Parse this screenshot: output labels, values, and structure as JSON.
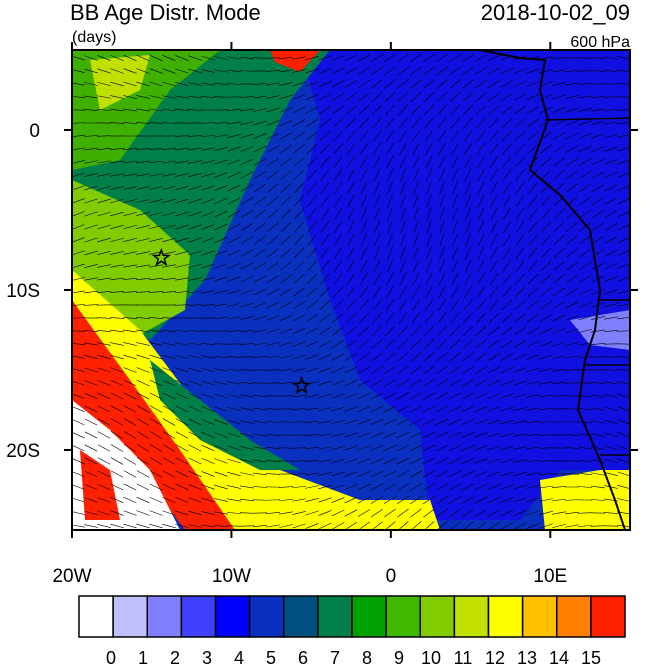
{
  "header": {
    "title": "BB Age Distr. Mode",
    "units": "(days)",
    "time": "2018-10-02_09",
    "level": "600 hPa"
  },
  "map": {
    "xlim": [
      -20,
      15
    ],
    "ylim": [
      -25,
      5
    ],
    "xticks": [
      {
        "value": -20,
        "label": "20W"
      },
      {
        "value": -10,
        "label": "10W"
      },
      0,
      {
        "value": 10,
        "label": "10E"
      }
    ],
    "yticks": [
      0,
      {
        "value": -10,
        "label": "10S"
      },
      {
        "value": -20,
        "label": "20S"
      }
    ],
    "markers": [
      {
        "lon": -14.4,
        "lat": -8
      },
      {
        "lon": -5.6,
        "lat": -16
      }
    ]
  },
  "colorbar": {
    "colors": [
      "#ffffff",
      "#c0c0ff",
      "#8080ff",
      "#4040ff",
      "#0000ff",
      "#0a30c0",
      "#005080",
      "#008048",
      "#00a000",
      "#40b800",
      "#80cc00",
      "#c0e000",
      "#ffff00",
      "#ffc000",
      "#ff8000",
      "#ff2000"
    ],
    "labels": [
      0,
      1,
      2,
      3,
      4,
      5,
      6,
      7,
      8,
      9,
      10,
      11,
      12,
      13,
      14,
      15
    ]
  }
}
